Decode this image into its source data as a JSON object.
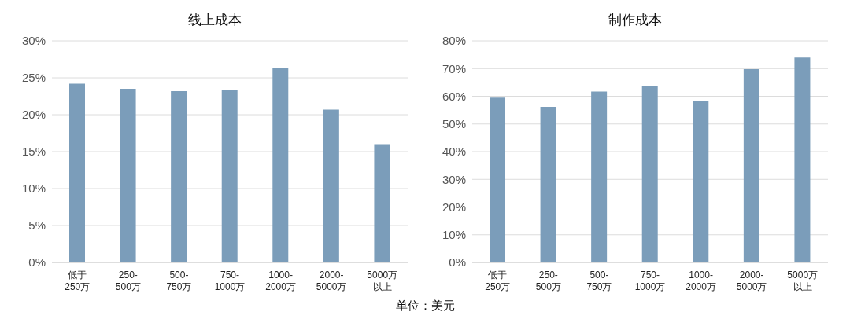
{
  "chart_data": [
    {
      "type": "bar",
      "title": "线上成本",
      "categories": [
        "低于\n250万",
        "250-\n500万",
        "500-\n750万",
        "750-\n1000万",
        "1000-\n2000万",
        "2000-\n5000万",
        "5000万以上"
      ],
      "series": [
        {
          "color": "#7b9dba",
          "values": [
            24.2,
            23.5,
            23.2,
            23.4,
            26.3,
            20.7,
            16.0
          ]
        }
      ],
      "ylim": [
        0,
        30
      ],
      "yticks": [
        {
          "value": 0,
          "label": "0%"
        },
        {
          "value": 5,
          "label": "5%"
        },
        {
          "value": 10,
          "label": "10%"
        },
        {
          "value": 15,
          "label": "15%"
        },
        {
          "value": 20,
          "label": "20%"
        },
        {
          "value": 25,
          "label": "25%"
        },
        {
          "value": 30,
          "label": "30%"
        }
      ],
      "grid": "y",
      "legend": false,
      "annotations": [
        "单位：美元"
      ]
    },
    {
      "type": "bar",
      "title": "制作成本",
      "categories": [
        "低于\n250万",
        "250-\n500万",
        "500-\n750万",
        "750-\n1000万",
        "1000-\n2000万",
        "2000-\n5000万",
        "5000万以上"
      ],
      "series": [
        {
          "color": "#7b9dba",
          "values": [
            59.5,
            56.2,
            61.7,
            63.8,
            58.3,
            69.8,
            74.0
          ]
        }
      ],
      "ylim": [
        0,
        80
      ],
      "yticks": [
        {
          "value": 0,
          "label": "0%"
        },
        {
          "value": 10,
          "label": "10%"
        },
        {
          "value": 20,
          "label": "20%"
        },
        {
          "value": 30,
          "label": "30%"
        },
        {
          "value": 40,
          "label": "40%"
        },
        {
          "value": 50,
          "label": "50%"
        },
        {
          "value": 60,
          "label": "60%"
        },
        {
          "value": 70,
          "label": "70%"
        },
        {
          "value": 80,
          "label": "80%"
        }
      ],
      "grid": "y",
      "legend": false
    }
  ]
}
